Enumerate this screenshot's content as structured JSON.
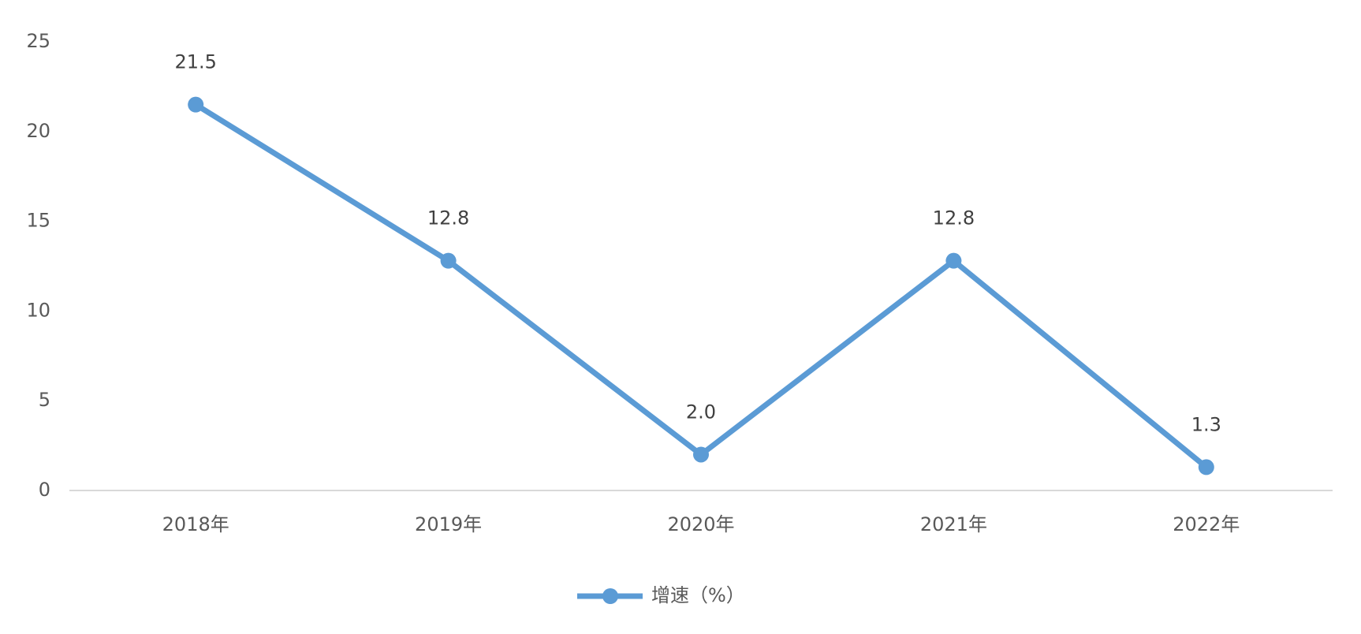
{
  "chart_data": {
    "type": "line",
    "categories": [
      "2018年",
      "2019年",
      "2020年",
      "2021年",
      "2022年"
    ],
    "series": [
      {
        "name": "增速（%）",
        "color": "#5b9bd5",
        "values": [
          21.5,
          12.8,
          2.0,
          12.8,
          1.3
        ],
        "value_labels": [
          "21.5",
          "12.8",
          "2.0",
          "12.8",
          "1.3"
        ]
      }
    ],
    "ylim": [
      0,
      25
    ],
    "yticks": [
      0,
      5,
      10,
      15,
      20,
      25
    ],
    "grid": false
  }
}
